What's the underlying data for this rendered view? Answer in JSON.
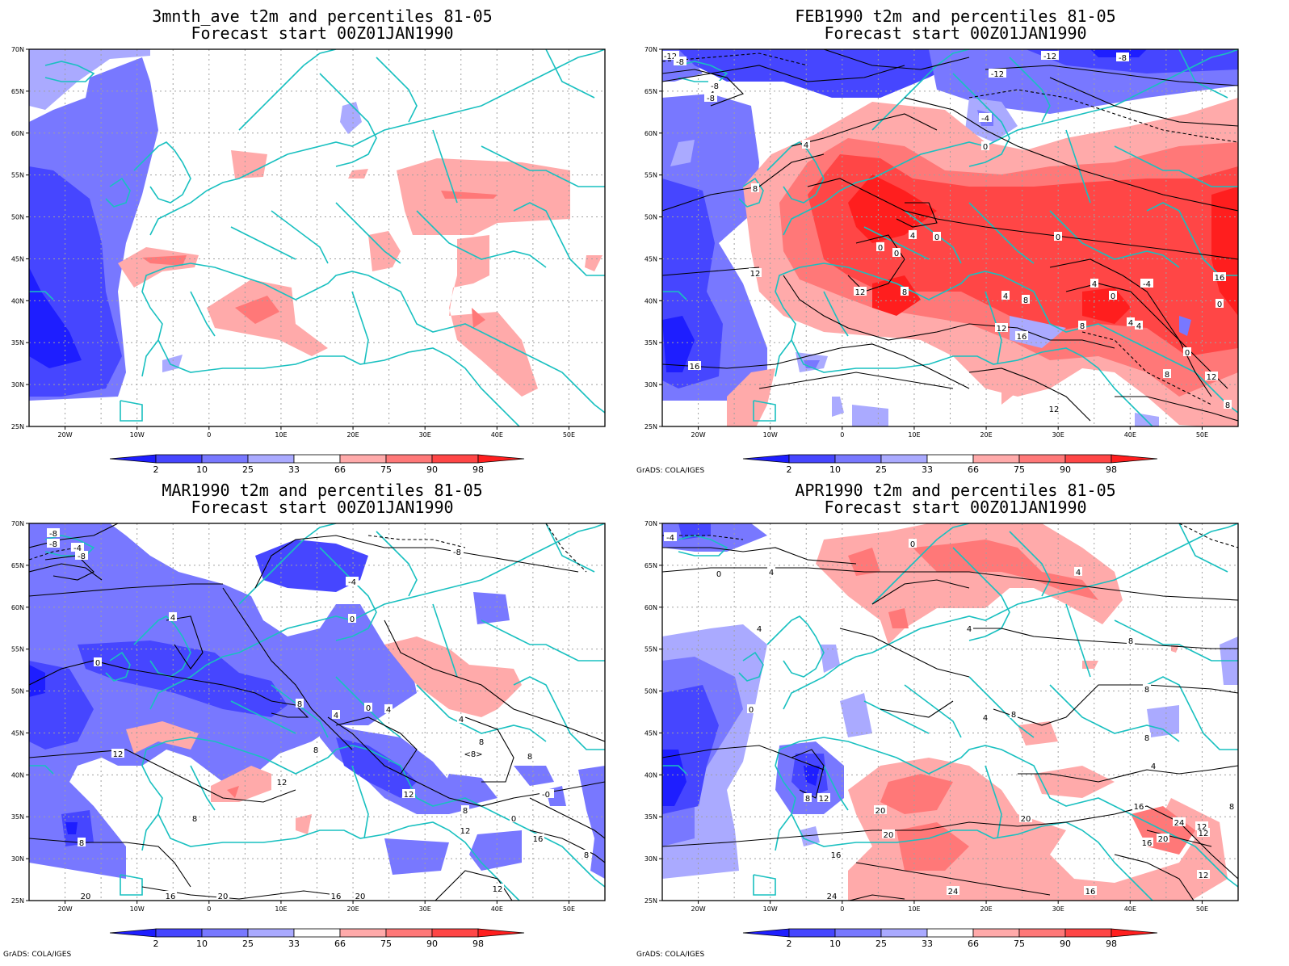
{
  "panels": [
    {
      "id": "p1",
      "title_line1": "3mnth_ave t2m and percentiles 81-05",
      "title_line2": "Forecast start 00Z01JAN1990",
      "credit": ""
    },
    {
      "id": "p2",
      "title_line1": "FEB1990 t2m and percentiles 81-05",
      "title_line2": "Forecast start 00Z01JAN1990",
      "credit": "GrADS: COLA/IGES"
    },
    {
      "id": "p3",
      "title_line1": "MAR1990 t2m and percentiles 81-05",
      "title_line2": "Forecast start 00Z01JAN1990",
      "credit": "GrADS: COLA/IGES"
    },
    {
      "id": "p4",
      "title_line1": "APR1990 t2m and percentiles 81-05",
      "title_line2": "Forecast start 00Z01JAN1990",
      "credit": "GrADS: COLA/IGES"
    }
  ],
  "axes": {
    "lat_labels": [
      "70N",
      "65N",
      "60N",
      "55N",
      "50N",
      "45N",
      "40N",
      "35N",
      "30N",
      "25N"
    ],
    "lon_labels": [
      "20W",
      "10W",
      "0",
      "10E",
      "20E",
      "30E",
      "40E",
      "50E"
    ]
  },
  "colorbar": {
    "labels": [
      "2",
      "10",
      "25",
      "33",
      "66",
      "75",
      "90",
      "98"
    ],
    "colors": [
      "#1e1eff",
      "#4646ff",
      "#7878ff",
      "#aaaaff",
      "#ffffff",
      "#ffaaaa",
      "#ff7878",
      "#ff4646",
      "#ff1e1e"
    ]
  },
  "map_colors": {
    "coast": "#19c0c0",
    "contour": "#000000",
    "grid": "#a0a0a0"
  },
  "contour_labels": {
    "p1": [],
    "p2": [
      "-12",
      "-8",
      "-8",
      "-4",
      "-8",
      "-12",
      "-8",
      "-12",
      "-4",
      "0",
      "4",
      "8",
      "12",
      "16",
      "0",
      "0",
      "0",
      "4",
      "8",
      "12",
      "0",
      "4",
      "-4",
      "0",
      "4",
      "8",
      "12",
      "16",
      "8",
      "4",
      "8",
      "12",
      "16",
      "0",
      "0",
      "4",
      "8",
      "12"
    ],
    "p3": [
      "-8",
      "-8",
      "-4",
      "-8",
      "-8",
      "-4",
      "0",
      "4",
      "0",
      "8",
      "4",
      "0",
      "8",
      "4",
      "4",
      "8",
      "12",
      "12",
      "8",
      "8",
      "4",
      "0",
      "12",
      "16",
      "20",
      "12",
      "8",
      "16",
      "20",
      "8",
      "-0",
      "16",
      "20",
      "12",
      "<8>",
      "8"
    ],
    "p4": [
      "-4",
      "0",
      "4",
      "0",
      "4",
      "4",
      "8",
      "4",
      "0",
      "4",
      "8",
      "8",
      "16",
      "12",
      "8",
      "12",
      "20",
      "16",
      "20",
      "24",
      "24",
      "12",
      "16",
      "20",
      "20",
      "24",
      "4",
      "8",
      "12",
      "16",
      "8"
    ]
  }
}
